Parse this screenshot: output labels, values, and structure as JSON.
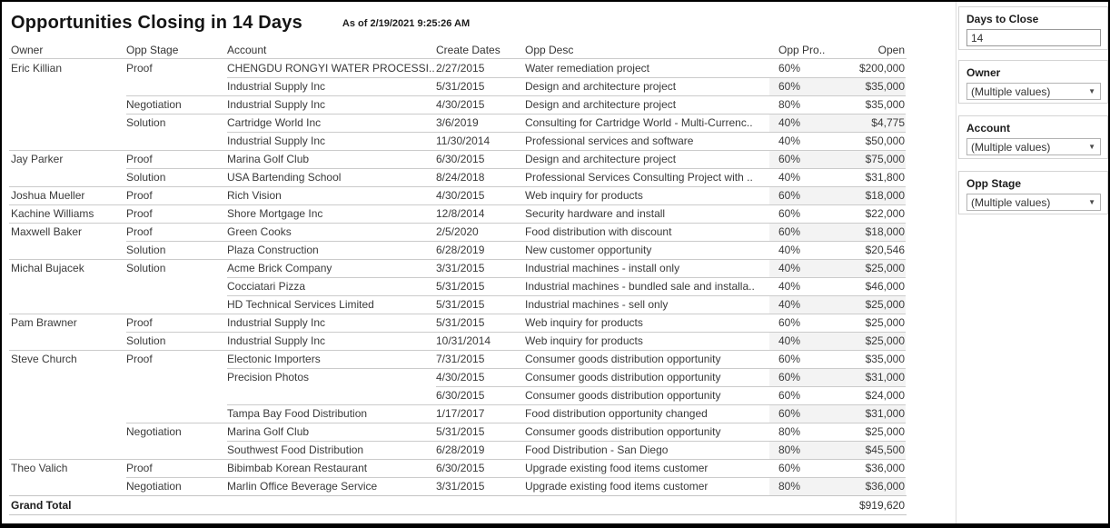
{
  "header": {
    "title": "Opportunities Closing in 14 Days",
    "as_of": "As of 2/19/2021 9:25:26 AM"
  },
  "table": {
    "columns": [
      "Owner",
      "Opp Stage",
      "Account",
      "Create Dates",
      "Opp Desc",
      "Opp Pro..",
      "Open"
    ],
    "rows": [
      {
        "owner": "Eric Killian",
        "stage": "Proof",
        "account": "CHENGDU RONGYI WATER PROCESSI..",
        "date": "2/27/2015",
        "desc": "Water remediation project",
        "prob": "60%",
        "open": "$200,000",
        "sep": "none"
      },
      {
        "owner": "",
        "stage": "",
        "account": "Industrial Supply Inc",
        "date": "5/31/2015",
        "desc": "Design and architecture project",
        "prob": "60%",
        "open": "$35,000",
        "sep": "account"
      },
      {
        "owner": "",
        "stage": "Negotiation",
        "account": "Industrial Supply Inc",
        "date": "4/30/2015",
        "desc": "Design and architecture project",
        "prob": "80%",
        "open": "$35,000",
        "sep": "stage"
      },
      {
        "owner": "",
        "stage": "Solution",
        "account": "Cartridge World Inc",
        "date": "3/6/2019",
        "desc": "Consulting for Cartridge World - Multi-Currenc..",
        "prob": "40%",
        "open": "$4,775",
        "sep": "stage"
      },
      {
        "owner": "",
        "stage": "",
        "account": "Industrial Supply Inc",
        "date": "11/30/2014",
        "desc": "Professional services and software",
        "prob": "40%",
        "open": "$50,000",
        "sep": "account"
      },
      {
        "owner": "Jay Parker",
        "stage": "Proof",
        "account": "Marina Golf Club",
        "date": "6/30/2015",
        "desc": "Design and architecture project",
        "prob": "60%",
        "open": "$75,000",
        "sep": "full"
      },
      {
        "owner": "",
        "stage": "Solution",
        "account": "USA Bartending School",
        "date": "8/24/2018",
        "desc": "Professional Services Consulting Project with ..",
        "prob": "40%",
        "open": "$31,800",
        "sep": "stage"
      },
      {
        "owner": "Joshua Mueller",
        "stage": "Proof",
        "account": "Rich Vision",
        "date": "4/30/2015",
        "desc": "Web inquiry for products",
        "prob": "60%",
        "open": "$18,000",
        "sep": "full"
      },
      {
        "owner": "Kachine Williams",
        "stage": "Proof",
        "account": "Shore Mortgage Inc",
        "date": "12/8/2014",
        "desc": "Security hardware and install",
        "prob": "60%",
        "open": "$22,000",
        "sep": "full"
      },
      {
        "owner": "Maxwell Baker",
        "stage": "Proof",
        "account": "Green Cooks",
        "date": "2/5/2020",
        "desc": "Food distribution with discount",
        "prob": "60%",
        "open": "$18,000",
        "sep": "full"
      },
      {
        "owner": "",
        "stage": "Solution",
        "account": "Plaza Construction",
        "date": "6/28/2019",
        "desc": "New customer opportunity",
        "prob": "40%",
        "open": "$20,546",
        "sep": "stage"
      },
      {
        "owner": "Michal Bujacek",
        "stage": "Solution",
        "account": "Acme Brick Company",
        "date": "3/31/2015",
        "desc": "Industrial machines - install only",
        "prob": "40%",
        "open": "$25,000",
        "sep": "full"
      },
      {
        "owner": "",
        "stage": "",
        "account": "Cocciatari Pizza",
        "date": "5/31/2015",
        "desc": "Industrial machines - bundled sale and installa..",
        "prob": "40%",
        "open": "$46,000",
        "sep": "account"
      },
      {
        "owner": "",
        "stage": "",
        "account": "HD Technical Services Limited",
        "date": "5/31/2015",
        "desc": "Industrial machines - sell only",
        "prob": "40%",
        "open": "$25,000",
        "sep": "account"
      },
      {
        "owner": "Pam Brawner",
        "stage": "Proof",
        "account": "Industrial Supply Inc",
        "date": "5/31/2015",
        "desc": "Web inquiry for products",
        "prob": "60%",
        "open": "$25,000",
        "sep": "full"
      },
      {
        "owner": "",
        "stage": "Solution",
        "account": "Industrial Supply Inc",
        "date": "10/31/2014",
        "desc": "Web inquiry for products",
        "prob": "40%",
        "open": "$25,000",
        "sep": "stage"
      },
      {
        "owner": "Steve Church",
        "stage": "Proof",
        "account": "Electonic Importers",
        "date": "7/31/2015",
        "desc": "Consumer goods distribution opportunity",
        "prob": "60%",
        "open": "$35,000",
        "sep": "full"
      },
      {
        "owner": "",
        "stage": "",
        "account": "Precision Photos",
        "date": "4/30/2015",
        "desc": "Consumer goods distribution opportunity",
        "prob": "60%",
        "open": "$31,000",
        "sep": "account"
      },
      {
        "owner": "",
        "stage": "",
        "account": "",
        "date": "6/30/2015",
        "desc": "Consumer goods distribution opportunity",
        "prob": "60%",
        "open": "$24,000",
        "sep": "date"
      },
      {
        "owner": "",
        "stage": "",
        "account": "Tampa Bay Food Distribution",
        "date": "1/17/2017",
        "desc": "Food distribution opportunity changed",
        "prob": "60%",
        "open": "$31,000",
        "sep": "account"
      },
      {
        "owner": "",
        "stage": "Negotiation",
        "account": "Marina Golf Club",
        "date": "5/31/2015",
        "desc": "Consumer goods distribution opportunity",
        "prob": "80%",
        "open": "$25,000",
        "sep": "stage"
      },
      {
        "owner": "",
        "stage": "",
        "account": "Southwest Food Distribution",
        "date": "6/28/2019",
        "desc": "Food Distribution - San Diego",
        "prob": "80%",
        "open": "$45,500",
        "sep": "account"
      },
      {
        "owner": "Theo Valich",
        "stage": "Proof",
        "account": "Bibimbab Korean Restaurant",
        "date": "6/30/2015",
        "desc": "Upgrade existing food items customer",
        "prob": "60%",
        "open": "$36,000",
        "sep": "full"
      },
      {
        "owner": "",
        "stage": "Negotiation",
        "account": "Marlin Office Beverage Service",
        "date": "3/31/2015",
        "desc": "Upgrade existing food items customer",
        "prob": "80%",
        "open": "$36,000",
        "sep": "stage"
      }
    ],
    "grand_total": {
      "label": "Grand Total",
      "open": "$919,620"
    }
  },
  "filters": {
    "days_to_close": {
      "label": "Days to Close",
      "value": "14"
    },
    "owner": {
      "label": "Owner",
      "value": "(Multiple values)"
    },
    "account": {
      "label": "Account",
      "value": "(Multiple values)"
    },
    "opp_stage": {
      "label": "Opp Stage",
      "value": "(Multiple values)"
    }
  },
  "icons": {
    "dropdown_caret": "▼"
  },
  "colors": {
    "row_band": "#f3f3f3",
    "row_line": "#cbcbcb",
    "text": "#3a3a3a",
    "title_text": "#141414",
    "window_border": "#000000",
    "card_border": "#d4d4d4"
  }
}
